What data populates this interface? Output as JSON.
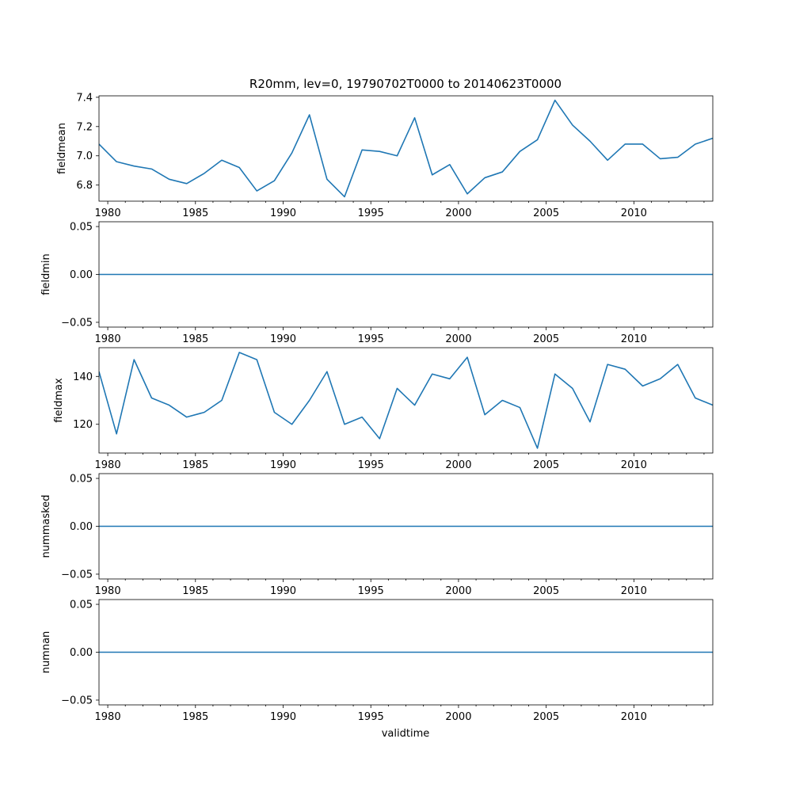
{
  "figure": {
    "title": "R20mm, lev=0, 19790702T0000 to 20140623T0000",
    "xlabel": "validtime",
    "line_color": "#1f77b4"
  },
  "chart_data": [
    {
      "type": "line",
      "ylabel": "fieldmean",
      "xlim": [
        1979.5,
        2014.5
      ],
      "ylim": [
        6.69,
        7.41
      ],
      "x_ticks": [
        "1980",
        "1985",
        "1990",
        "1995",
        "2000",
        "2005",
        "2010"
      ],
      "y_ticks": [
        "6.8",
        "7.0",
        "7.2",
        "7.4"
      ],
      "x": [
        1979.5,
        1980.5,
        1981.5,
        1982.5,
        1983.5,
        1984.5,
        1985.5,
        1986.5,
        1987.5,
        1988.5,
        1989.5,
        1990.5,
        1991.5,
        1992.5,
        1993.5,
        1994.5,
        1995.5,
        1996.5,
        1997.5,
        1998.5,
        1999.5,
        2000.5,
        2001.5,
        2002.5,
        2003.5,
        2004.5,
        2005.5,
        2006.5,
        2007.5,
        2008.5,
        2009.5,
        2010.5,
        2011.5,
        2012.5,
        2013.5,
        2014.5
      ],
      "values": [
        7.08,
        6.96,
        6.93,
        6.91,
        6.84,
        6.81,
        6.88,
        6.97,
        6.92,
        6.76,
        6.83,
        7.02,
        7.28,
        6.84,
        6.72,
        7.04,
        7.03,
        7.0,
        7.26,
        6.87,
        6.94,
        6.74,
        6.85,
        6.89,
        7.03,
        7.11,
        7.38,
        7.21,
        7.1,
        6.97,
        7.08,
        7.08,
        6.98,
        6.99,
        7.08,
        7.12
      ]
    },
    {
      "type": "line",
      "ylabel": "fieldmin",
      "xlim": [
        1979.5,
        2014.5
      ],
      "ylim": [
        -0.055,
        0.055
      ],
      "x_ticks": [
        "1980",
        "1985",
        "1990",
        "1995",
        "2000",
        "2005",
        "2010"
      ],
      "y_ticks": [
        "−0.05",
        "0.00",
        "0.05"
      ],
      "x": [
        1979.5,
        2014.5
      ],
      "values": [
        0,
        0
      ]
    },
    {
      "type": "line",
      "ylabel": "fieldmax",
      "xlim": [
        1979.5,
        2014.5
      ],
      "ylim": [
        108,
        152
      ],
      "x_ticks": [
        "1980",
        "1985",
        "1990",
        "1995",
        "2000",
        "2005",
        "2010"
      ],
      "y_ticks": [
        "120",
        "140"
      ],
      "x": [
        1979.5,
        1980.5,
        1981.5,
        1982.5,
        1983.5,
        1984.5,
        1985.5,
        1986.5,
        1987.5,
        1988.5,
        1989.5,
        1990.5,
        1991.5,
        1992.5,
        1993.5,
        1994.5,
        1995.5,
        1996.5,
        1997.5,
        1998.5,
        1999.5,
        2000.5,
        2001.5,
        2002.5,
        2003.5,
        2004.5,
        2005.5,
        2006.5,
        2007.5,
        2008.5,
        2009.5,
        2010.5,
        2011.5,
        2012.5,
        2013.5,
        2014.5
      ],
      "values": [
        142,
        116,
        147,
        131,
        128,
        123,
        125,
        130,
        150,
        147,
        125,
        120,
        130,
        142,
        120,
        123,
        114,
        135,
        128,
        141,
        139,
        148,
        124,
        130,
        127,
        110,
        141,
        135,
        121,
        145,
        143,
        136,
        139,
        145,
        131,
        128
      ]
    },
    {
      "type": "line",
      "ylabel": "nummasked",
      "xlim": [
        1979.5,
        2014.5
      ],
      "ylim": [
        -0.055,
        0.055
      ],
      "x_ticks": [
        "1980",
        "1985",
        "1990",
        "1995",
        "2000",
        "2005",
        "2010"
      ],
      "y_ticks": [
        "−0.05",
        "0.00",
        "0.05"
      ],
      "x": [
        1979.5,
        2014.5
      ],
      "values": [
        0,
        0
      ]
    },
    {
      "type": "line",
      "ylabel": "numnan",
      "xlim": [
        1979.5,
        2014.5
      ],
      "ylim": [
        -0.055,
        0.055
      ],
      "x_ticks": [
        "1980",
        "1985",
        "1990",
        "1995",
        "2000",
        "2005",
        "2010"
      ],
      "y_ticks": [
        "−0.05",
        "0.00",
        "0.05"
      ],
      "x": [
        1979.5,
        2014.5
      ],
      "values": [
        0,
        0
      ]
    }
  ]
}
